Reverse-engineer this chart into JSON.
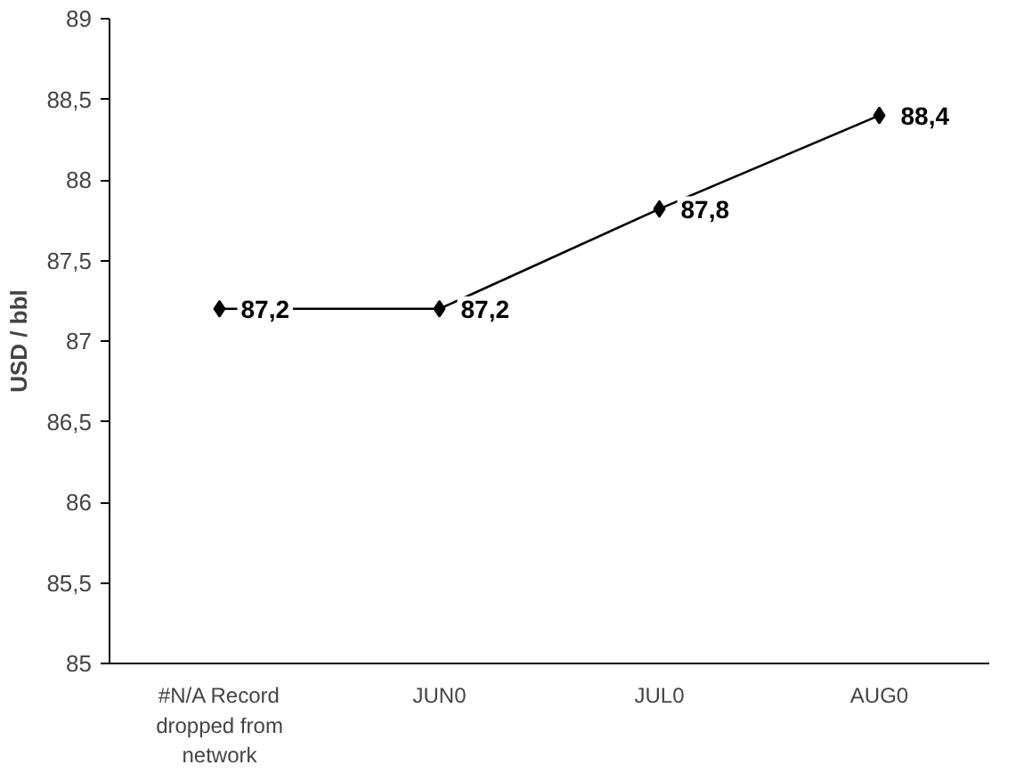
{
  "chart_data": {
    "type": "line",
    "ylabel": "USD / bbl",
    "categories": [
      "#N/A Record dropped from network",
      "JUN0",
      "JUL0",
      "AUG0"
    ],
    "series": [
      {
        "color": "#000000",
        "values": [
          87.2,
          87.2,
          87.82,
          88.4
        ],
        "value_labels": [
          "87,2",
          "87,2",
          "87,8",
          "88,4"
        ]
      }
    ],
    "ylim": [
      85,
      89
    ],
    "yticks": [
      85,
      {
        "value": 85.5,
        "label": "85,5"
      },
      86,
      {
        "value": 86.5,
        "label": "86,5"
      },
      87,
      {
        "value": 87.5,
        "label": "87,5"
      },
      88,
      {
        "value": 88.5,
        "label": "88,5"
      },
      89
    ],
    "marker": "diamond",
    "line_style": "solid",
    "grid": false
  }
}
